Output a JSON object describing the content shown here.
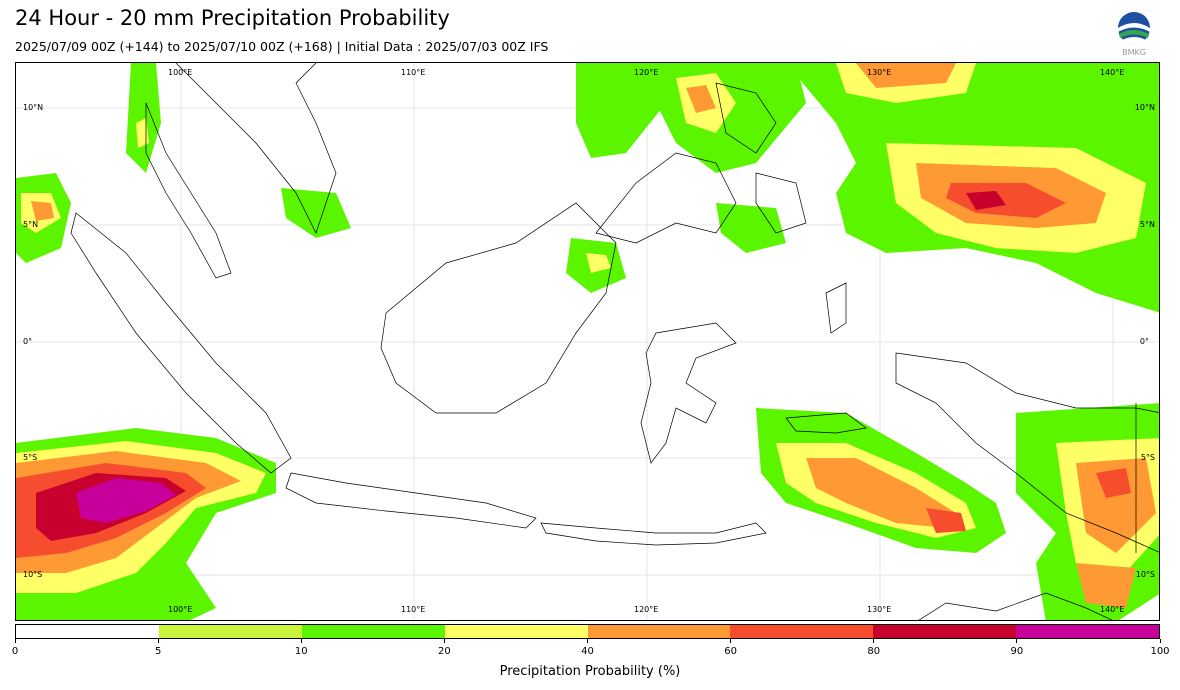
{
  "header": {
    "title": "24 Hour - 20 mm Precipitation Probability",
    "subtitle": "2025/07/09 00Z (+144) to 2025/07/10 00Z (+168) | Initial Data : 2025/07/03 00Z IFS",
    "logo_text": "BMKG"
  },
  "map": {
    "lon_labels": [
      "100°E",
      "110°E",
      "120°E",
      "130°E",
      "140°E"
    ],
    "lat_labels": [
      "10°N",
      "5°N",
      "0°",
      "5°S",
      "10°S"
    ],
    "land_color": "#ffffff",
    "coast_color": "#000000"
  },
  "colorbar": {
    "label": "Precipitation Probability (%)",
    "ticks": [
      "0",
      "5",
      "10",
      "20",
      "40",
      "60",
      "80",
      "90",
      "100"
    ],
    "colors": [
      "#ffffff",
      "#c8f53c",
      "#5cf500",
      "#ffff66",
      "#ff9933",
      "#f54d2e",
      "#c8002d",
      "#c8009b"
    ]
  }
}
